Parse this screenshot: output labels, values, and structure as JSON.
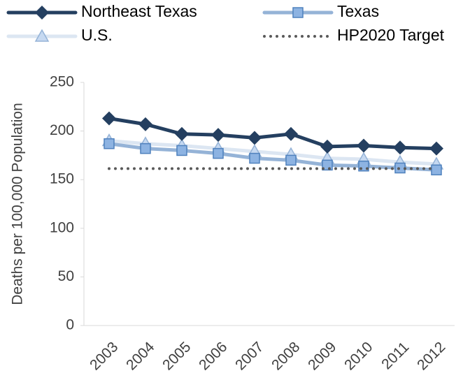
{
  "chart_data": {
    "type": "line",
    "categories": [
      "2003",
      "2004",
      "2005",
      "2006",
      "2007",
      "2008",
      "2009",
      "2010",
      "2011",
      "2012"
    ],
    "series": [
      {
        "name": "Northeast Texas",
        "color": "#243f60",
        "marker": "diamond",
        "values": [
          213,
          207,
          197,
          196,
          193,
          197,
          184,
          185,
          183,
          182
        ]
      },
      {
        "name": "Texas",
        "color": "#95b3d7",
        "marker": "square",
        "values": [
          187,
          182,
          180,
          177,
          172,
          170,
          165,
          164,
          162,
          160
        ]
      },
      {
        "name": "U.S.",
        "color": "#dce6f2",
        "marker": "triangle",
        "values": [
          190,
          187,
          185,
          182,
          179,
          176,
          172,
          171,
          168,
          166
        ]
      },
      {
        "name": "HP2020 Target",
        "color": "#595959",
        "marker": "dotted",
        "values": [
          161.4,
          161.4,
          161.4,
          161.4,
          161.4,
          161.4,
          161.4,
          161.4,
          161.4,
          161.4
        ]
      }
    ],
    "y_label": "Deaths per 100,000 Population",
    "ylim": [
      0,
      250
    ],
    "yticks": [
      0,
      50,
      100,
      150,
      200,
      250
    ],
    "grid": false
  }
}
